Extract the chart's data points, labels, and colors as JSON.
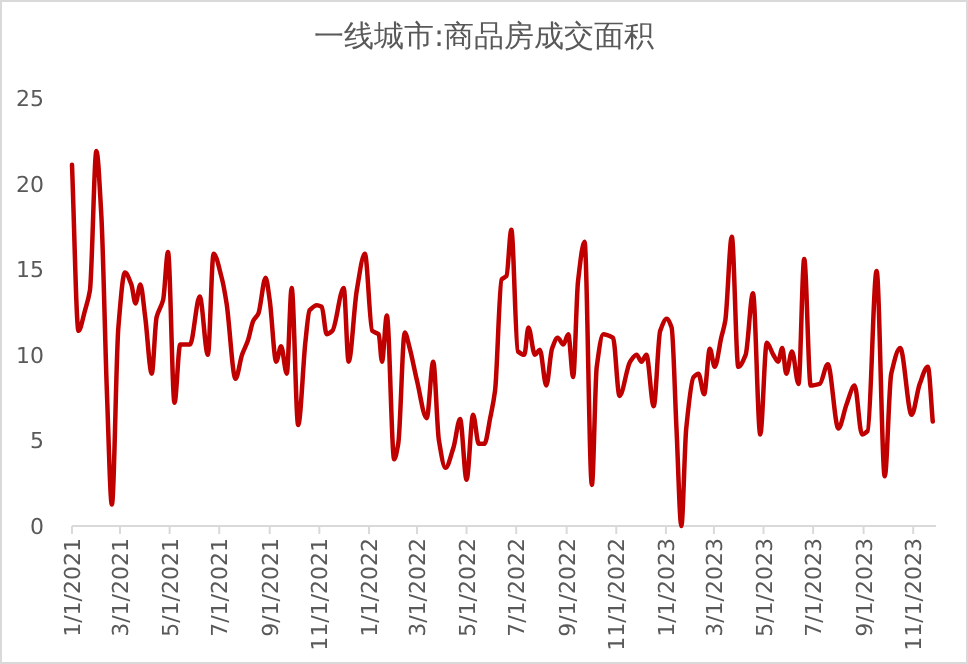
{
  "chart_data": {
    "type": "line",
    "title": "一线城市:商品房成交面积",
    "series": [
      {
        "color": "#c00000",
        "x": [
          "2021-01-01",
          "2021-01-09",
          "2021-01-17",
          "2021-01-23",
          "2021-01-31",
          "2021-02-06",
          "2021-02-13",
          "2021-02-19",
          "2021-02-27",
          "2021-03-07",
          "2021-03-15",
          "2021-03-20",
          "2021-03-26",
          "2021-04-01",
          "2021-04-09",
          "2021-04-15",
          "2021-04-23",
          "2021-04-29",
          "2021-05-07",
          "2021-05-14",
          "2021-05-26",
          "2021-06-07",
          "2021-06-17",
          "2021-06-24",
          "2021-07-04",
          "2021-07-10",
          "2021-07-21",
          "2021-07-29",
          "2021-08-05",
          "2021-08-12",
          "2021-08-18",
          "2021-08-27",
          "2021-09-01",
          "2021-09-09",
          "2021-09-15",
          "2021-09-22",
          "2021-09-28",
          "2021-10-06",
          "2021-10-15",
          "2021-10-20",
          "2021-10-29",
          "2021-11-04",
          "2021-11-10",
          "2021-11-17",
          "2021-12-01",
          "2021-12-07",
          "2021-12-17",
          "2021-12-27",
          "2022-01-05",
          "2022-01-13",
          "2022-01-17",
          "2022-01-23",
          "2022-02-01",
          "2022-02-06",
          "2022-02-14",
          "2022-02-20",
          "2022-03-01",
          "2022-03-13",
          "2022-03-21",
          "2022-03-28",
          "2022-04-05",
          "2022-04-15",
          "2022-04-23",
          "2022-05-01",
          "2022-05-09",
          "2022-05-16",
          "2022-05-23",
          "2022-05-30",
          "2022-06-05",
          "2022-06-13",
          "2022-06-19",
          "2022-06-25",
          "2022-07-03",
          "2022-07-11",
          "2022-07-16",
          "2022-07-24",
          "2022-07-30",
          "2022-08-07",
          "2022-08-14",
          "2022-08-21",
          "2022-08-28",
          "2022-09-03",
          "2022-09-09",
          "2022-09-15",
          "2022-09-23",
          "2022-10-02",
          "2022-10-08",
          "2022-10-16",
          "2022-10-28",
          "2022-11-05",
          "2022-11-18",
          "2022-11-26",
          "2022-12-02",
          "2022-12-08",
          "2022-12-17",
          "2022-12-25",
          "2023-01-02",
          "2023-01-08",
          "2023-01-14",
          "2023-01-20",
          "2023-01-26",
          "2023-02-04",
          "2023-02-10",
          "2023-02-17",
          "2023-02-24",
          "2023-03-02",
          "2023-03-10",
          "2023-03-15",
          "2023-03-23",
          "2023-03-31",
          "2023-04-09",
          "2023-04-18",
          "2023-04-27",
          "2023-05-05",
          "2023-05-13",
          "2023-05-19",
          "2023-05-24",
          "2023-05-29",
          "2023-06-05",
          "2023-06-13",
          "2023-06-20",
          "2023-06-28",
          "2023-07-09",
          "2023-07-19",
          "2023-08-01",
          "2023-08-11",
          "2023-08-21",
          "2023-08-30",
          "2023-09-06",
          "2023-09-17",
          "2023-09-27",
          "2023-10-05",
          "2023-10-16",
          "2023-10-30",
          "2023-11-09",
          "2023-11-19",
          "2023-11-25"
        ],
        "values": [
          21.1,
          11.4,
          12.6,
          13.75,
          21.9,
          18.2,
          7.7,
          1.25,
          11.6,
          14.8,
          14.1,
          13.0,
          14.1,
          12.2,
          8.9,
          12.2,
          13.2,
          16.0,
          7.2,
          10.6,
          10.6,
          13.4,
          10.0,
          15.9,
          14.5,
          13.0,
          8.6,
          10.0,
          10.8,
          12.0,
          12.4,
          14.5,
          13.2,
          9.6,
          10.5,
          8.9,
          13.9,
          5.9,
          10.8,
          12.6,
          12.9,
          12.8,
          11.2,
          11.4,
          13.9,
          9.6,
          13.75,
          15.9,
          11.4,
          11.2,
          9.6,
          12.3,
          3.9,
          4.8,
          11.3,
          10.4,
          8.5,
          6.3,
          9.6,
          5.0,
          3.4,
          4.6,
          6.25,
          2.7,
          6.5,
          4.8,
          4.8,
          6.3,
          7.9,
          14.4,
          14.6,
          17.3,
          10.2,
          10.0,
          11.6,
          10.0,
          10.3,
          8.2,
          10.35,
          11.0,
          10.6,
          11.2,
          8.7,
          14.3,
          16.6,
          2.4,
          9.3,
          11.2,
          11.0,
          7.6,
          9.6,
          10.0,
          9.6,
          10.0,
          7.0,
          11.4,
          12.1,
          11.6,
          5.7,
          0.0,
          5.7,
          8.7,
          8.9,
          7.7,
          10.35,
          9.3,
          11.0,
          12.0,
          16.9,
          9.3,
          10.0,
          13.6,
          5.35,
          10.7,
          10.0,
          9.6,
          10.4,
          8.9,
          10.2,
          8.3,
          15.6,
          8.2,
          8.3,
          9.45,
          5.7,
          7.1,
          8.2,
          5.35,
          5.55,
          14.9,
          2.9,
          8.9,
          10.4,
          6.5,
          8.3,
          9.3,
          6.1
        ]
      }
    ],
    "xlim": [
      "2021-01-01",
      "2023-11-29"
    ],
    "xticks": [
      {
        "value": "2021-01-01",
        "label": "1/1/2021"
      },
      {
        "value": "2021-03-01",
        "label": "3/1/2021"
      },
      {
        "value": "2021-05-01",
        "label": "5/1/2021"
      },
      {
        "value": "2021-07-01",
        "label": "7/1/2021"
      },
      {
        "value": "2021-09-01",
        "label": "9/1/2021"
      },
      {
        "value": "2021-11-01",
        "label": "11/1/2021"
      },
      {
        "value": "2022-01-01",
        "label": "1/1/2022"
      },
      {
        "value": "2022-03-01",
        "label": "3/1/2022"
      },
      {
        "value": "2022-05-01",
        "label": "5/1/2022"
      },
      {
        "value": "2022-07-01",
        "label": "7/1/2022"
      },
      {
        "value": "2022-09-01",
        "label": "9/1/2022"
      },
      {
        "value": "2022-11-01",
        "label": "11/1/2022"
      },
      {
        "value": "2023-01-01",
        "label": "1/1/2023"
      },
      {
        "value": "2023-03-01",
        "label": "3/1/2023"
      },
      {
        "value": "2023-05-01",
        "label": "5/1/2023"
      },
      {
        "value": "2023-07-01",
        "label": "7/1/2023"
      },
      {
        "value": "2023-09-01",
        "label": "9/1/2023"
      },
      {
        "value": "2023-11-01",
        "label": "11/1/2023"
      }
    ],
    "ylim": [
      0,
      25
    ],
    "yticks": [
      0,
      5,
      10,
      15,
      20,
      25
    ]
  }
}
